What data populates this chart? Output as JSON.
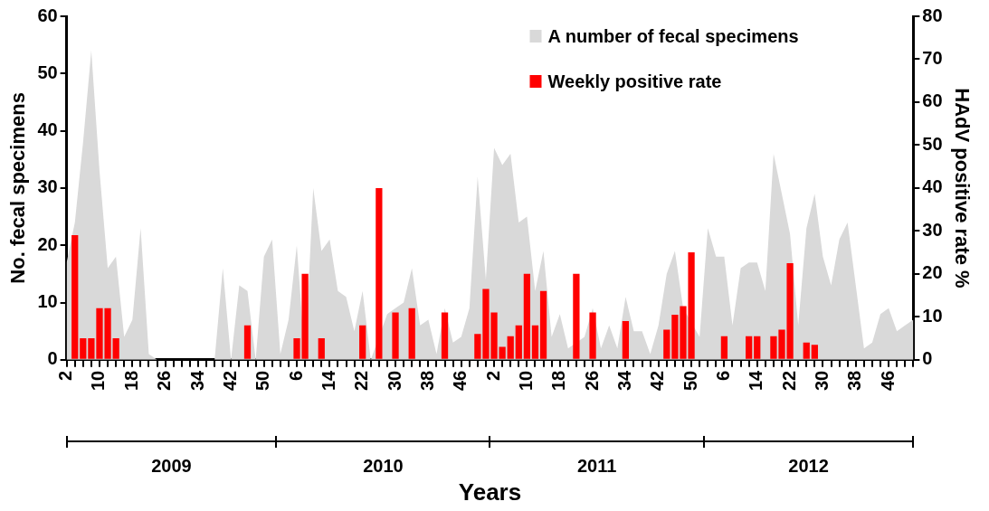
{
  "chart_data": {
    "type": "bar",
    "xlabel": "Years",
    "ylabel": "No. fecal specimens",
    "y2label": "HAdV positive rate %",
    "categories": [
      "2",
      null,
      null,
      null,
      "10",
      null,
      null,
      null,
      "18",
      null,
      null,
      null,
      "26",
      null,
      null,
      null,
      "34",
      null,
      null,
      null,
      "42",
      null,
      null,
      null,
      "50",
      null,
      null,
      null,
      "6",
      null,
      null,
      null,
      "14",
      null,
      null,
      null,
      "22",
      null,
      null,
      null,
      "30",
      null,
      null,
      null,
      "38",
      null,
      null,
      null,
      "46",
      null,
      null,
      null,
      "2",
      null,
      null,
      null,
      "10",
      null,
      null,
      null,
      "18",
      null,
      null,
      null,
      "26",
      null,
      null,
      null,
      "34",
      null,
      null,
      null,
      "42",
      null,
      null,
      null,
      "50",
      null,
      null,
      null,
      "6",
      null,
      null,
      null,
      "14",
      null,
      null,
      null,
      "22",
      null,
      null,
      null,
      "30",
      null,
      null,
      null,
      "38",
      null,
      null,
      null,
      "46",
      null,
      null,
      null
    ],
    "series": [
      {
        "name": "A number of fecal specimens",
        "type": "area",
        "color": "#d9d9d9",
        "values": [
          17,
          24,
          38,
          54,
          33,
          16,
          18,
          4,
          7,
          23,
          1,
          0,
          0,
          0,
          0,
          0,
          0,
          0,
          0,
          16,
          0,
          13,
          12,
          0,
          18,
          21,
          1,
          7,
          20,
          0,
          30,
          19,
          21,
          12,
          11,
          5,
          12,
          0,
          null,
          8,
          9,
          10,
          16,
          6,
          7,
          1,
          9,
          3,
          4,
          9,
          32,
          14,
          37,
          34,
          36,
          24,
          25,
          12,
          19,
          4,
          8,
          2,
          null,
          4,
          9,
          2,
          6,
          2,
          11,
          5,
          5,
          1,
          6,
          15,
          19,
          9,
          null,
          4,
          23,
          18,
          18,
          6,
          16,
          17,
          17,
          12,
          36,
          29,
          22,
          6,
          23,
          29,
          18,
          13,
          21,
          24,
          13,
          2,
          3,
          8,
          9,
          5,
          6,
          7
        ]
      },
      {
        "name": "Weekly positive rate",
        "axis": "y2",
        "color": "#ff0000",
        "values": [
          null,
          29,
          5,
          5,
          12,
          12,
          5,
          null,
          null,
          null,
          null,
          null,
          null,
          null,
          null,
          null,
          null,
          null,
          null,
          null,
          null,
          null,
          8,
          null,
          null,
          null,
          null,
          null,
          5,
          20,
          null,
          5,
          null,
          null,
          null,
          null,
          8,
          null,
          40,
          null,
          11,
          null,
          12,
          null,
          null,
          null,
          11,
          null,
          null,
          null,
          6,
          16.5,
          11,
          3,
          5.5,
          8,
          20,
          8,
          16,
          null,
          null,
          null,
          20,
          null,
          11,
          null,
          null,
          null,
          9,
          null,
          null,
          null,
          null,
          7,
          10.5,
          12.5,
          25,
          null,
          null,
          null,
          5.5,
          null,
          null,
          5.5,
          5.5,
          null,
          5.5,
          7,
          22.5,
          null,
          4,
          3.5,
          null,
          null,
          null,
          null,
          null,
          null,
          null,
          null,
          null,
          null,
          null,
          null
        ]
      }
    ],
    "ylim": [
      0,
      60
    ],
    "yticks": [
      0,
      10,
      20,
      30,
      40,
      50,
      60
    ],
    "y2lim": [
      0,
      80
    ],
    "y2ticks": [
      0,
      10,
      20,
      30,
      40,
      50,
      60,
      70,
      80
    ],
    "grid": false,
    "legend": "top right",
    "annotations": [
      "2009",
      "2010",
      "2011",
      "2012"
    ]
  }
}
